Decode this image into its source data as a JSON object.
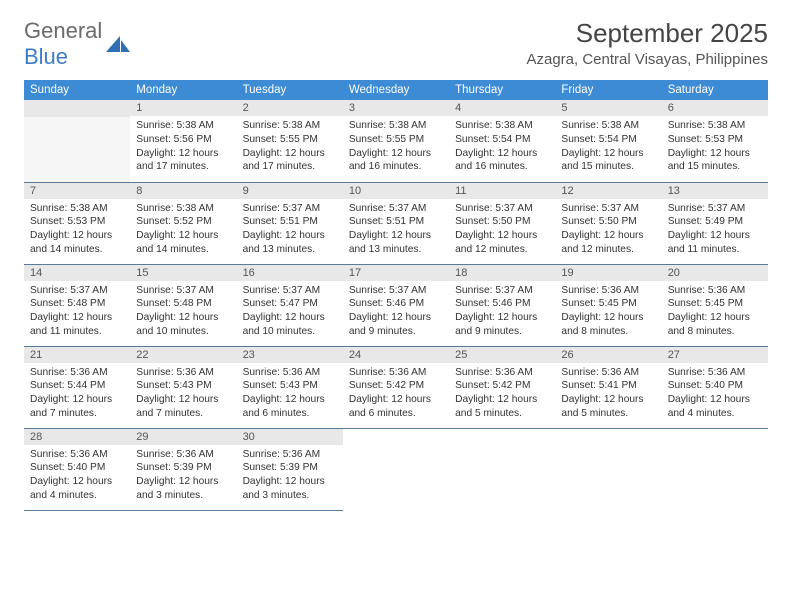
{
  "logo": {
    "text1": "General",
    "text2": "Blue"
  },
  "title": "September 2025",
  "location": "Azagra, Central Visayas, Philippines",
  "colors": {
    "header_bg": "#3d8bd4",
    "header_text": "#ffffff",
    "daynum_bg": "#e8e8e8",
    "row_border": "#5a7a9a",
    "logo_gray": "#6b6b6b",
    "logo_blue": "#3d7cc9"
  },
  "weekdays": [
    "Sunday",
    "Monday",
    "Tuesday",
    "Wednesday",
    "Thursday",
    "Friday",
    "Saturday"
  ],
  "weeks": [
    [
      null,
      {
        "n": "1",
        "sr": "5:38 AM",
        "ss": "5:56 PM",
        "dl": "12 hours and 17 minutes."
      },
      {
        "n": "2",
        "sr": "5:38 AM",
        "ss": "5:55 PM",
        "dl": "12 hours and 17 minutes."
      },
      {
        "n": "3",
        "sr": "5:38 AM",
        "ss": "5:55 PM",
        "dl": "12 hours and 16 minutes."
      },
      {
        "n": "4",
        "sr": "5:38 AM",
        "ss": "5:54 PM",
        "dl": "12 hours and 16 minutes."
      },
      {
        "n": "5",
        "sr": "5:38 AM",
        "ss": "5:54 PM",
        "dl": "12 hours and 15 minutes."
      },
      {
        "n": "6",
        "sr": "5:38 AM",
        "ss": "5:53 PM",
        "dl": "12 hours and 15 minutes."
      }
    ],
    [
      {
        "n": "7",
        "sr": "5:38 AM",
        "ss": "5:53 PM",
        "dl": "12 hours and 14 minutes."
      },
      {
        "n": "8",
        "sr": "5:38 AM",
        "ss": "5:52 PM",
        "dl": "12 hours and 14 minutes."
      },
      {
        "n": "9",
        "sr": "5:37 AM",
        "ss": "5:51 PM",
        "dl": "12 hours and 13 minutes."
      },
      {
        "n": "10",
        "sr": "5:37 AM",
        "ss": "5:51 PM",
        "dl": "12 hours and 13 minutes."
      },
      {
        "n": "11",
        "sr": "5:37 AM",
        "ss": "5:50 PM",
        "dl": "12 hours and 12 minutes."
      },
      {
        "n": "12",
        "sr": "5:37 AM",
        "ss": "5:50 PM",
        "dl": "12 hours and 12 minutes."
      },
      {
        "n": "13",
        "sr": "5:37 AM",
        "ss": "5:49 PM",
        "dl": "12 hours and 11 minutes."
      }
    ],
    [
      {
        "n": "14",
        "sr": "5:37 AM",
        "ss": "5:48 PM",
        "dl": "12 hours and 11 minutes."
      },
      {
        "n": "15",
        "sr": "5:37 AM",
        "ss": "5:48 PM",
        "dl": "12 hours and 10 minutes."
      },
      {
        "n": "16",
        "sr": "5:37 AM",
        "ss": "5:47 PM",
        "dl": "12 hours and 10 minutes."
      },
      {
        "n": "17",
        "sr": "5:37 AM",
        "ss": "5:46 PM",
        "dl": "12 hours and 9 minutes."
      },
      {
        "n": "18",
        "sr": "5:37 AM",
        "ss": "5:46 PM",
        "dl": "12 hours and 9 minutes."
      },
      {
        "n": "19",
        "sr": "5:36 AM",
        "ss": "5:45 PM",
        "dl": "12 hours and 8 minutes."
      },
      {
        "n": "20",
        "sr": "5:36 AM",
        "ss": "5:45 PM",
        "dl": "12 hours and 8 minutes."
      }
    ],
    [
      {
        "n": "21",
        "sr": "5:36 AM",
        "ss": "5:44 PM",
        "dl": "12 hours and 7 minutes."
      },
      {
        "n": "22",
        "sr": "5:36 AM",
        "ss": "5:43 PM",
        "dl": "12 hours and 7 minutes."
      },
      {
        "n": "23",
        "sr": "5:36 AM",
        "ss": "5:43 PM",
        "dl": "12 hours and 6 minutes."
      },
      {
        "n": "24",
        "sr": "5:36 AM",
        "ss": "5:42 PM",
        "dl": "12 hours and 6 minutes."
      },
      {
        "n": "25",
        "sr": "5:36 AM",
        "ss": "5:42 PM",
        "dl": "12 hours and 5 minutes."
      },
      {
        "n": "26",
        "sr": "5:36 AM",
        "ss": "5:41 PM",
        "dl": "12 hours and 5 minutes."
      },
      {
        "n": "27",
        "sr": "5:36 AM",
        "ss": "5:40 PM",
        "dl": "12 hours and 4 minutes."
      }
    ],
    [
      {
        "n": "28",
        "sr": "5:36 AM",
        "ss": "5:40 PM",
        "dl": "12 hours and 4 minutes."
      },
      {
        "n": "29",
        "sr": "5:36 AM",
        "ss": "5:39 PM",
        "dl": "12 hours and 3 minutes."
      },
      {
        "n": "30",
        "sr": "5:36 AM",
        "ss": "5:39 PM",
        "dl": "12 hours and 3 minutes."
      },
      "blank",
      "blank",
      "blank",
      "blank"
    ]
  ],
  "labels": {
    "sunrise": "Sunrise:",
    "sunset": "Sunset:",
    "daylight": "Daylight:"
  }
}
